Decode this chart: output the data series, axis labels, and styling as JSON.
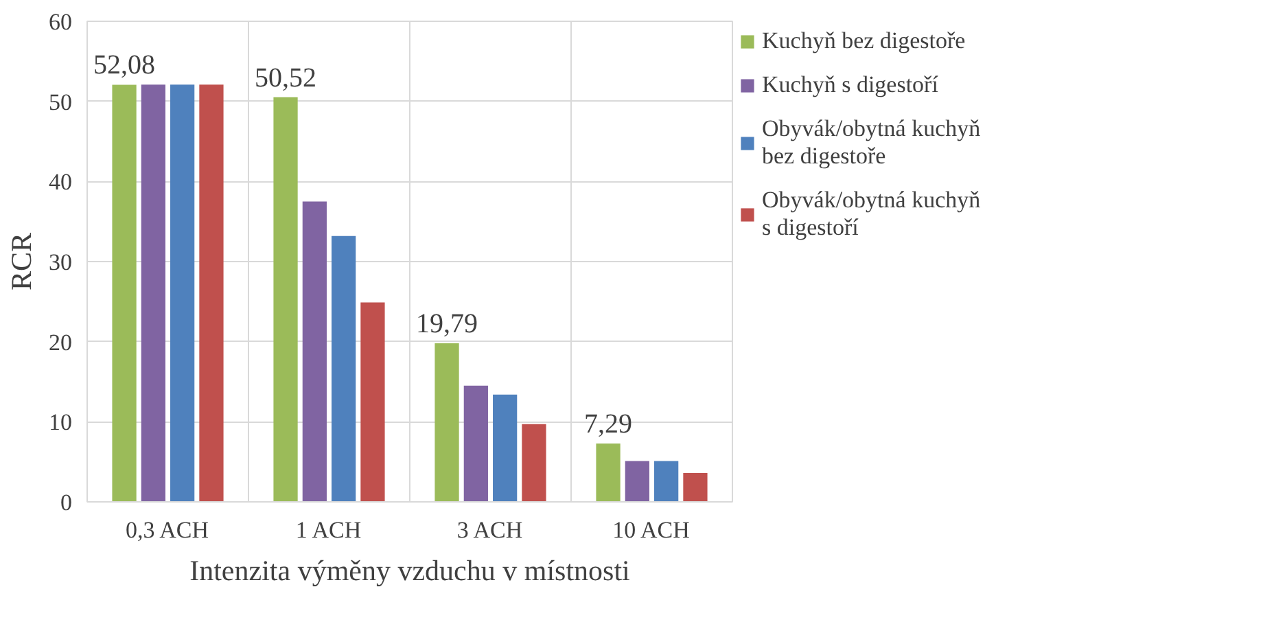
{
  "chart_data": {
    "type": "bar",
    "xlabel": "Intenzita výměny vzduchu v místnosti",
    "ylabel": "RCR",
    "categories": [
      "0,3 ACH",
      "1 ACH",
      "3 ACH",
      "10 ACH"
    ],
    "series": [
      {
        "name": "Kuchyň bez digestoře",
        "color": "#9bbb59",
        "values": [
          52.08,
          50.52,
          19.79,
          7.29
        ],
        "value_labels": [
          "52,08",
          "50,52",
          "19,79",
          "7,29"
        ]
      },
      {
        "name": "Kuchyň s digestoří",
        "color": "#8064a2",
        "values": [
          52.1,
          37.5,
          14.5,
          5.1
        ]
      },
      {
        "name": "Obyvák/obytná kuchyň bez digestoře",
        "color": "#4f81bd",
        "values": [
          52.1,
          33.2,
          13.4,
          5.1
        ]
      },
      {
        "name": "Obyvák/obytná kuchyň s digestoří",
        "color": "#c0504d",
        "values": [
          52.1,
          24.9,
          9.7,
          3.6
        ]
      }
    ],
    "ylim": [
      0,
      60
    ],
    "yticks": [
      0,
      10,
      20,
      30,
      40,
      50,
      60
    ],
    "grid": true,
    "legend": "right"
  }
}
